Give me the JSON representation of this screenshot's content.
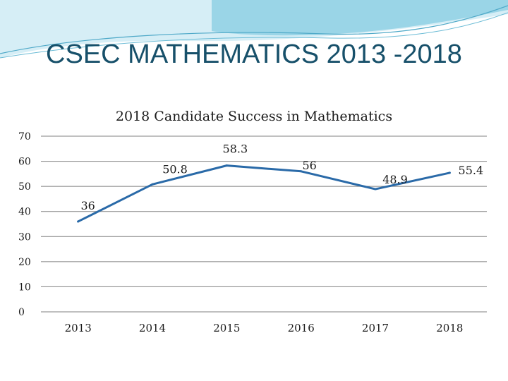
{
  "slide": {
    "title": "CSEC MATHEMATICS 2013 -2018"
  },
  "theme": {
    "banner_light": "#d6eef6",
    "banner_mid": "#7fc9e0",
    "title_color": "#17506a",
    "line_color": "#2a6aa8",
    "grid_color": "#808080"
  },
  "chart_data": {
    "type": "line",
    "title": "2018 Candidate Success in Mathematics",
    "xlabel": "",
    "ylabel": "",
    "categories": [
      "2013",
      "2014",
      "2015",
      "2016",
      "2017",
      "2018"
    ],
    "series": [
      {
        "values": [
          36,
          50.8,
          58.3,
          56,
          48.9,
          55.4
        ]
      }
    ],
    "data_labels": [
      "36",
      "50.8",
      "58.3",
      "56",
      "48.9",
      "55.4"
    ],
    "yticks": [
      0,
      10,
      20,
      30,
      40,
      50,
      60,
      70
    ],
    "ytick_labels": [
      "0",
      "10",
      "20",
      "30",
      "40",
      "50",
      "60",
      "70"
    ],
    "ylim": [
      0,
      70
    ],
    "grid": true,
    "legend": "none"
  }
}
